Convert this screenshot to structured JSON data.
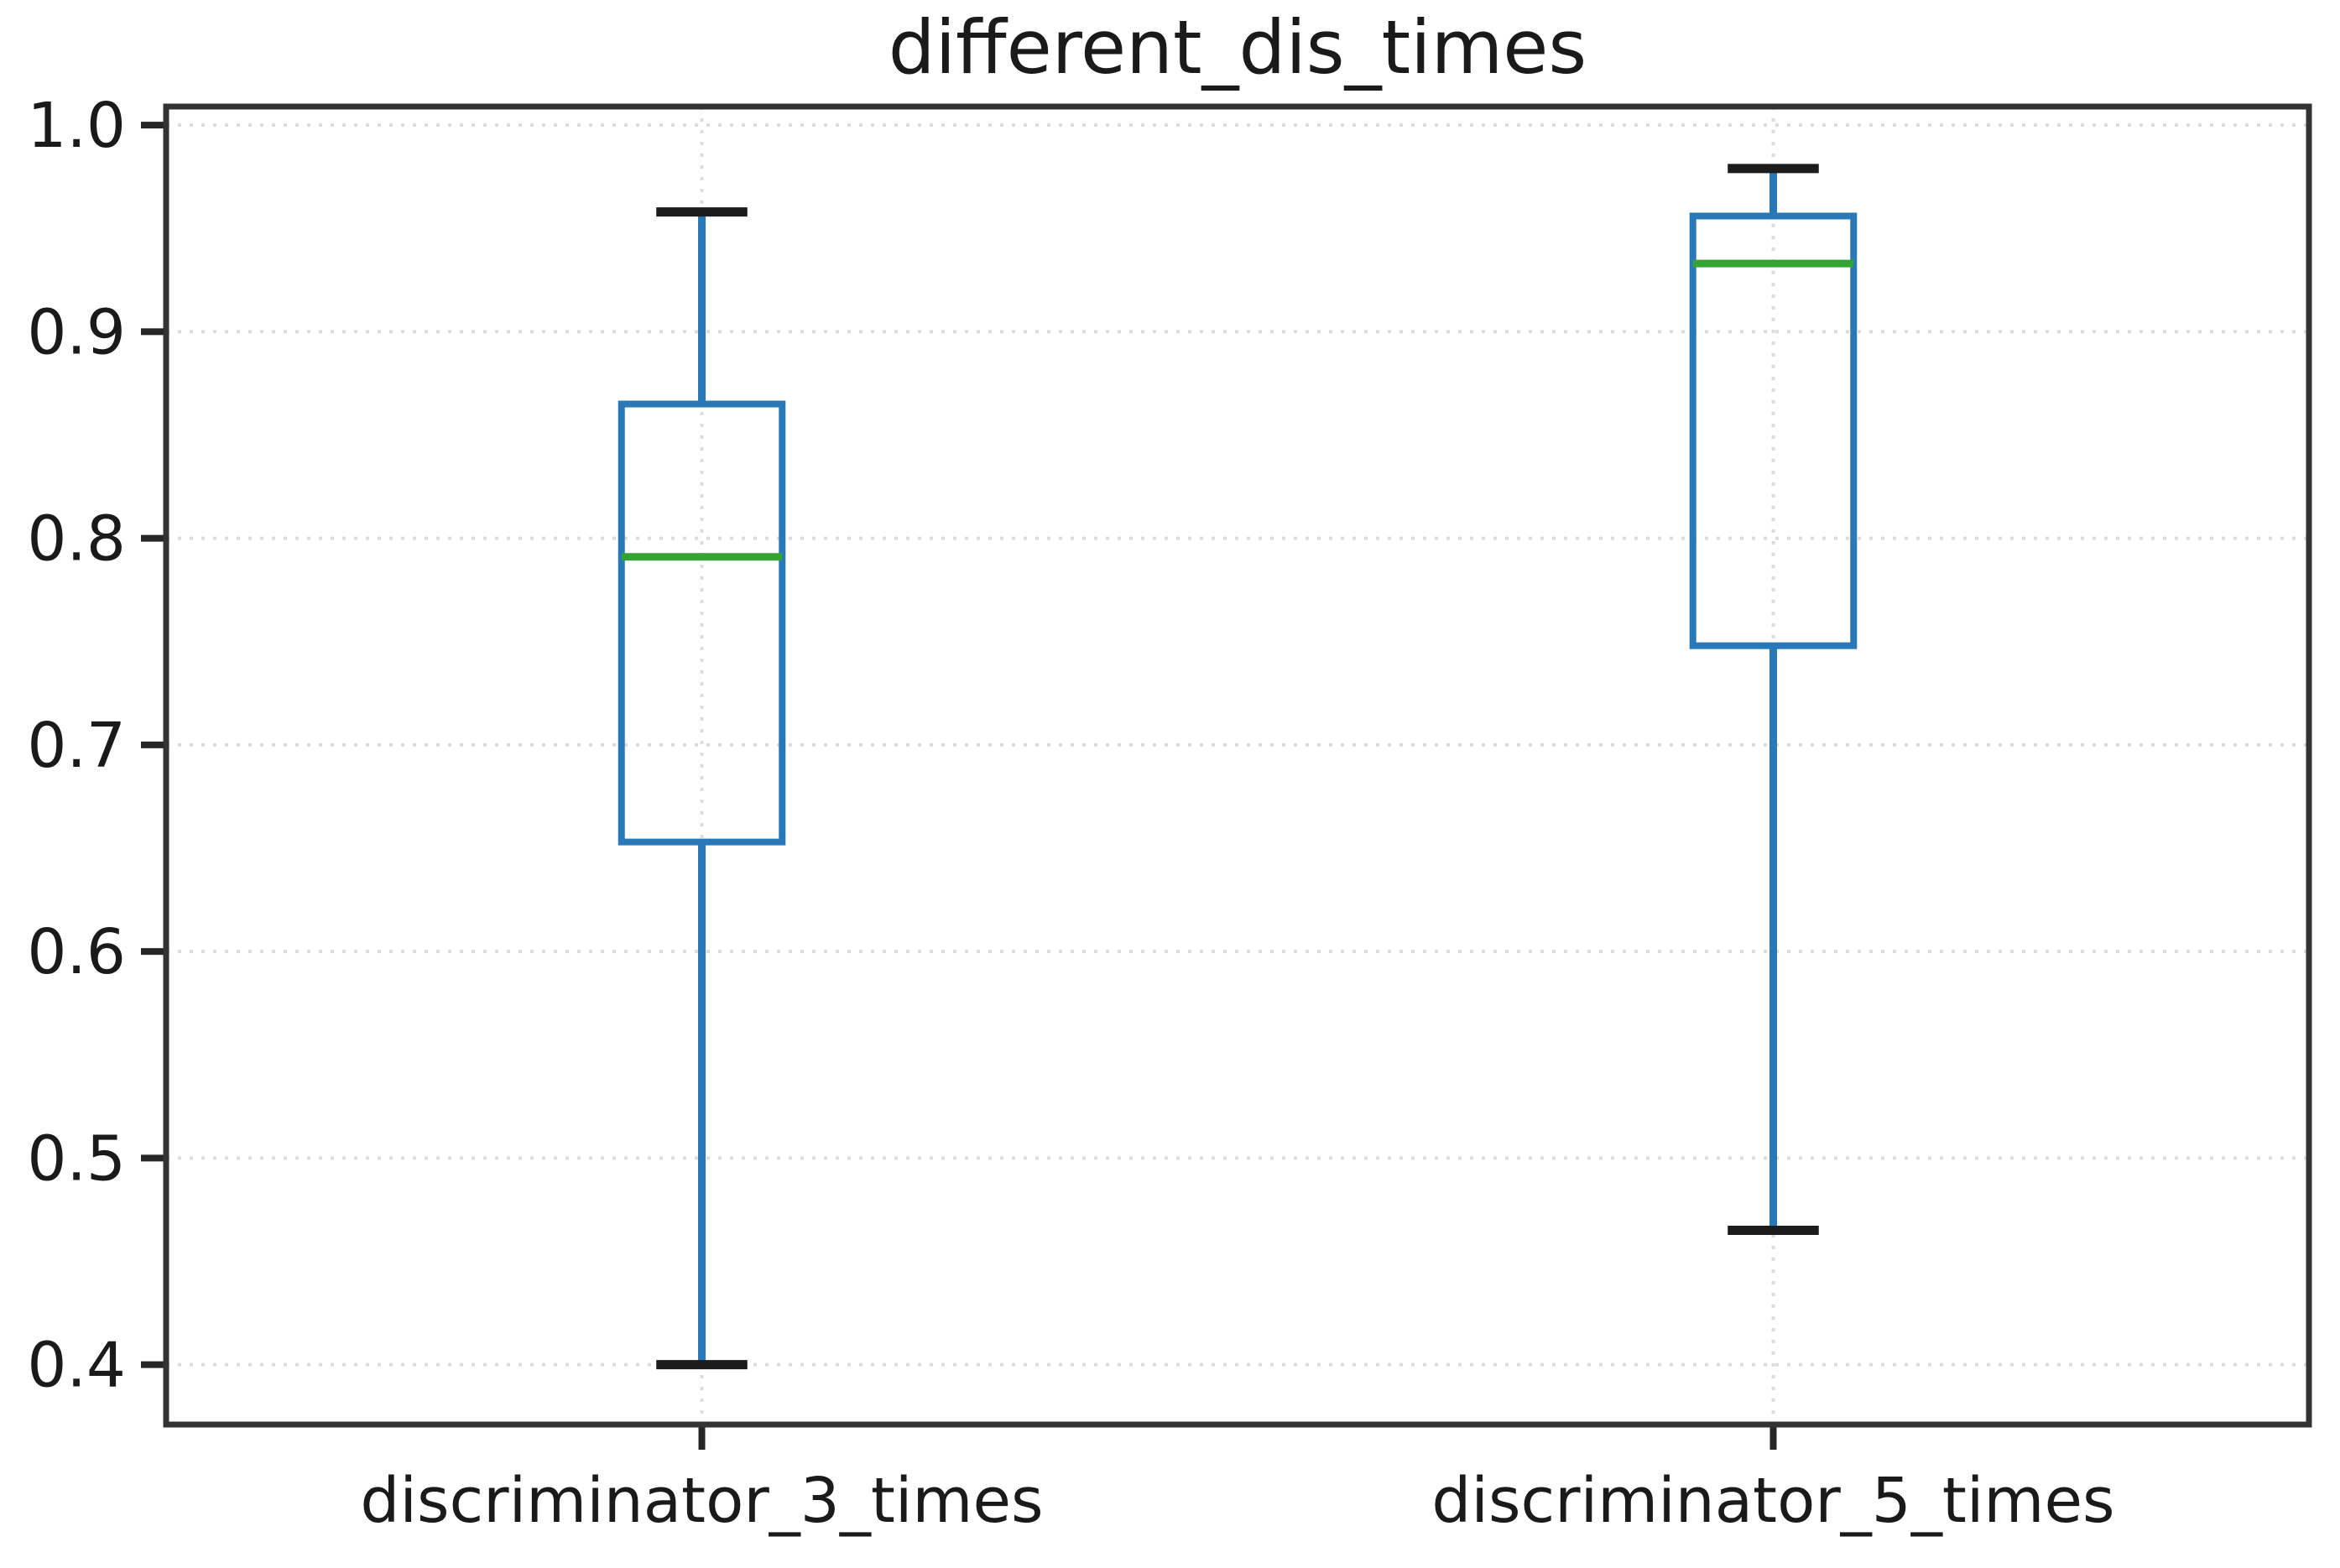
{
  "chart_data": {
    "type": "boxplot",
    "title": "different_dis_times",
    "categories": [
      "discriminator_3_times",
      "discriminator_5_times"
    ],
    "boxes": [
      {
        "label": "discriminator_3_times",
        "position": 1,
        "whisker_low": 0.4,
        "q1": 0.653,
        "median": 0.791,
        "q3": 0.865,
        "whisker_high": 0.958
      },
      {
        "label": "discriminator_5_times",
        "position": 2,
        "whisker_low": 0.465,
        "q1": 0.748,
        "median": 0.933,
        "q3": 0.956,
        "whisker_high": 0.979
      }
    ],
    "xlim": [
      0.5,
      2.5
    ],
    "ylim": [
      0.371,
      1.009
    ],
    "y_ticks": [
      1.0,
      0.9,
      0.8,
      0.7,
      0.6,
      0.5,
      0.4
    ],
    "y_tick_labels": [
      "1.0",
      "0.9",
      "0.8",
      "0.7",
      "0.6",
      "0.5",
      "0.4"
    ],
    "box_width_units": 0.15,
    "cap_width_units": 0.085,
    "grid": {
      "visible": true,
      "style": "dotted",
      "color": "#dcdcdc"
    },
    "colors": {
      "box": "#2979b8",
      "whisker": "#2979b8",
      "median": "#33a333",
      "cap": "#1c1c1c",
      "spine": "#333333",
      "tick": "#262626",
      "tick_label": "#1a1a1a",
      "title": "#1a1a1a",
      "background": "#ffffff"
    }
  }
}
